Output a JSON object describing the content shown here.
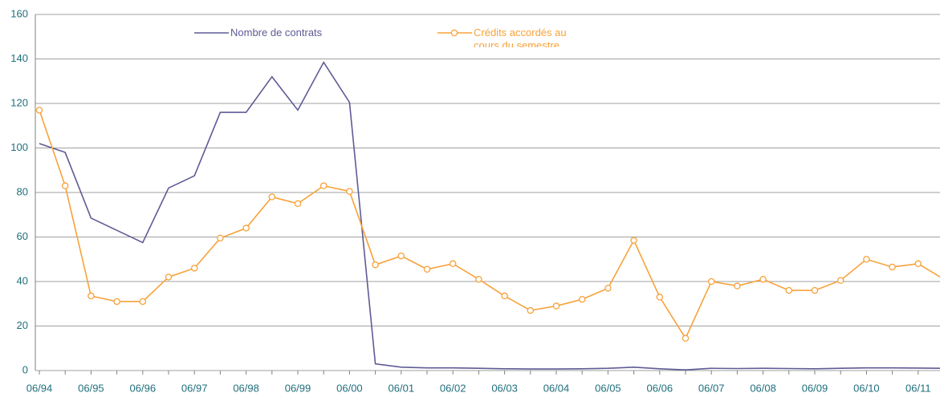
{
  "chart_data": {
    "type": "line",
    "categories": [
      "06/94",
      null,
      "06/95",
      null,
      "06/96",
      null,
      "06/97",
      null,
      "06/98",
      null,
      "06/99",
      null,
      "06/00",
      null,
      "06/01",
      null,
      "06/02",
      null,
      "06/03",
      null,
      "06/04",
      null,
      "06/05",
      null,
      "06/06",
      null,
      "06/07",
      null,
      "06/08",
      null,
      "06/09",
      null,
      "06/10",
      null,
      "06/11",
      null
    ],
    "series": [
      {
        "name": "Nombre de contrats",
        "color": "#5e5b96",
        "marker": false,
        "values": [
          102,
          98,
          68.5,
          63,
          57.5,
          82,
          87.5,
          116,
          116,
          132,
          117,
          138.5,
          120.5,
          3,
          1.5,
          1.2,
          1.2,
          1,
          0.8,
          0.7,
          0.7,
          0.8,
          1,
          1.5,
          0.8,
          0.3,
          1,
          0.9,
          1,
          0.9,
          0.8,
          1,
          1.2,
          1.2,
          1.1,
          1
        ]
      },
      {
        "name": "Crédits accordés au cours du semestre",
        "color": "#f7a23a",
        "marker": true,
        "values": [
          117,
          83,
          33.5,
          31,
          31,
          42,
          46,
          59.5,
          64,
          78,
          75,
          83,
          80.5,
          47.5,
          51.5,
          45.5,
          48,
          41,
          33.5,
          27,
          29,
          32,
          37,
          58.5,
          33,
          14.5,
          40,
          38,
          41,
          36,
          36,
          40.5,
          50,
          46.5,
          48,
          41
        ]
      }
    ],
    "ylim": [
      0,
      160
    ],
    "yticks": [
      0,
      20,
      40,
      60,
      80,
      100,
      120,
      140,
      160
    ],
    "grid": true
  }
}
